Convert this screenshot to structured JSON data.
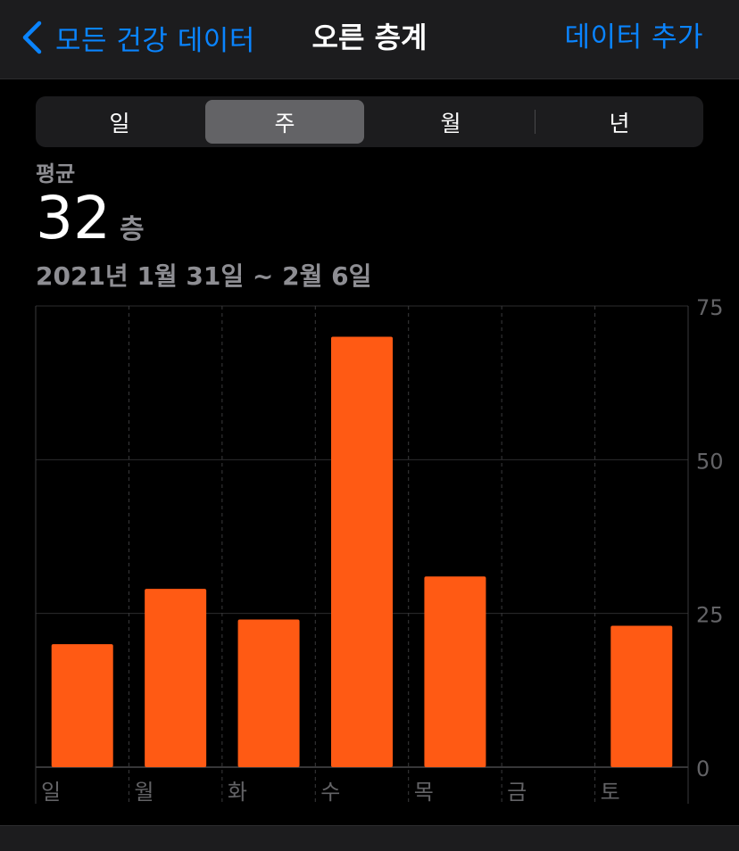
{
  "navbar": {
    "back_label": "모든 건강 데이터",
    "title": "오른 층계",
    "add_label": "데이터 추가"
  },
  "segments": {
    "day": "일",
    "week": "주",
    "month": "월",
    "year": "년",
    "selected": "week"
  },
  "summary": {
    "label": "평균",
    "value": "32",
    "unit": "층",
    "date_range": "2021년 1월 31일 ~ 2월 6일"
  },
  "colors": {
    "accent": "#0a84ff",
    "bar": "#ff5a14",
    "background": "#000000",
    "secondary_text": "#8e8e93"
  },
  "chart_data": {
    "type": "bar",
    "categories": [
      "일",
      "월",
      "화",
      "수",
      "목",
      "금",
      "토"
    ],
    "values": [
      20,
      29,
      24,
      70,
      31,
      0,
      23
    ],
    "ylim": [
      0,
      75
    ],
    "yticks": [
      0,
      25,
      50,
      75
    ],
    "title": "",
    "xlabel": "",
    "ylabel": "",
    "grid": true
  }
}
